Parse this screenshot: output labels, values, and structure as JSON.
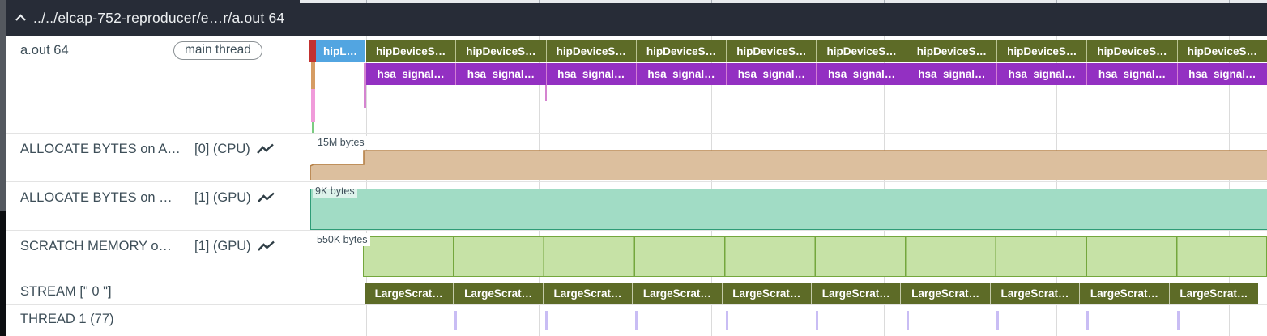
{
  "header": {
    "title": "../../elcap-752-reproducer/e…r/a.out 64"
  },
  "sidebar": {
    "rows": [
      {
        "name": "a.out 64",
        "badge": "main thread"
      },
      {
        "name": "ALLOCATE BYTES on A…",
        "detail": "[0] (CPU)",
        "icon": "line-chart"
      },
      {
        "name": "ALLOCATE BYTES on …",
        "detail": "[1] (GPU)",
        "icon": "line-chart"
      },
      {
        "name": "SCRATCH MEMORY o…",
        "detail": "[1] (GPU)",
        "icon": "line-chart"
      },
      {
        "name": "STREAM [\" 0 \"]"
      },
      {
        "name": "THREAD 1 (77)"
      }
    ]
  },
  "timeline": {
    "first_slice_label": "hipL…",
    "hip_row": {
      "label": "hipDeviceS…",
      "count": 10
    },
    "hsa_row": {
      "label": "hsa_signal…",
      "count": 10
    },
    "stream_row": {
      "label": "LargeScrat…",
      "count": 10
    },
    "counters": [
      {
        "label": "15M bytes"
      },
      {
        "label": "9K bytes"
      },
      {
        "label": "550K bytes"
      }
    ]
  },
  "colors": {
    "header_bg": "#272c37",
    "slice_olive": "#5d6b27",
    "slice_purple": "#9330c2",
    "slice_blue": "#52a5e1",
    "slice_red": "#c23230",
    "counter_tan_fill": "#dcbf9e",
    "counter_tan_stroke": "#b58046",
    "counter_teal_fill": "#a1dcc5",
    "counter_teal_stroke": "#2f9c77",
    "counter_green_fill": "#c6e2a6",
    "counter_green_stroke": "#74a73d",
    "thread_tick": "#c9bdf4"
  }
}
